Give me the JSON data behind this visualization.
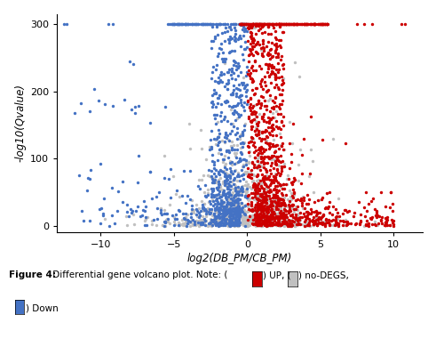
{
  "xlabel": "log2(DB_PM/CB_PM)",
  "ylabel": "-log10(Qvalue)",
  "xlim": [
    -13,
    12
  ],
  "ylim": [
    -10,
    315
  ],
  "xticks": [
    -10,
    -5,
    0,
    5,
    10
  ],
  "yticks": [
    0,
    100,
    200,
    300
  ],
  "color_up": "#CC0000",
  "color_down": "#4472C4",
  "color_nodeg": "#C0C0C0",
  "dot_size": 6,
  "seed": 42
}
